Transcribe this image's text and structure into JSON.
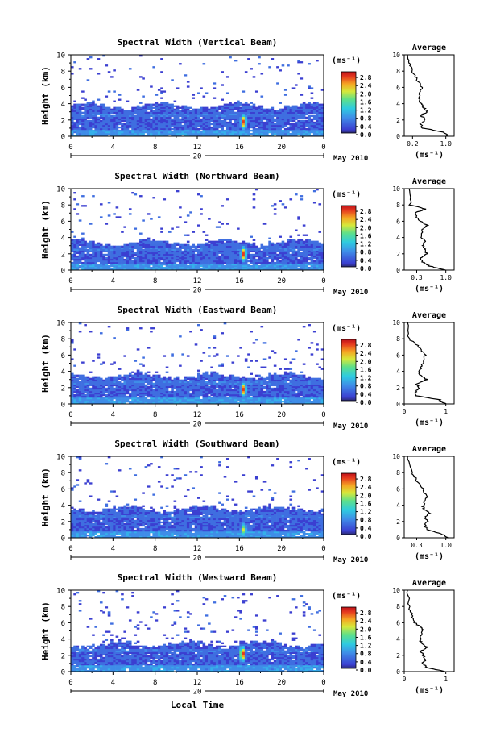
{
  "figure": {
    "x_axis_title": "Local Time",
    "date_label": "May 2010",
    "day_label": "20",
    "colorbar_unit": "(ms⁻¹)",
    "profile_unit": "(ms⁻¹)",
    "y_axis_title": "Height (km)",
    "profile_title": "Average"
  },
  "chart_data": [
    {
      "type": "heatmap",
      "title": "Spectral Width (Vertical Beam)",
      "ylabel": "Height (km)",
      "xlabel": "Local Time",
      "x_ticks": [
        "0",
        "4",
        "8",
        "12",
        "16",
        "20",
        "0"
      ],
      "x_range": [
        0,
        24
      ],
      "y_ticks": [
        "0",
        "2",
        "4",
        "6",
        "8",
        "10"
      ],
      "y_range": [
        0,
        10
      ],
      "colorbar": {
        "ticks": [
          "0.0",
          "0.4",
          "0.8",
          "1.2",
          "1.6",
          "2.0",
          "2.4",
          "2.8"
        ],
        "range": [
          0,
          3.0
        ]
      },
      "layer_top_km": 3.8,
      "peak": {
        "time_h": 16.4,
        "height_km": 1.8,
        "value": 2.8
      },
      "profile": {
        "title": "Average",
        "x_ticks": [
          "0.2",
          "1.0"
        ],
        "x_range": [
          0.0,
          1.2
        ],
        "heights": [
          0,
          0.5,
          1,
          1.5,
          2,
          2.5,
          3,
          3.5,
          4,
          5,
          6,
          7,
          8,
          9,
          10
        ],
        "values": [
          1.05,
          0.95,
          0.45,
          0.38,
          0.5,
          0.42,
          0.55,
          0.48,
          0.4,
          0.35,
          0.42,
          0.3,
          0.18,
          0.12,
          0.08
        ]
      }
    },
    {
      "type": "heatmap",
      "title": "Spectral Width (Northward Beam)",
      "ylabel": "Height (km)",
      "xlabel": "Local Time",
      "x_ticks": [
        "0",
        "4",
        "8",
        "12",
        "16",
        "20",
        "0"
      ],
      "x_range": [
        0,
        24
      ],
      "y_ticks": [
        "0",
        "2",
        "4",
        "6",
        "8",
        "10"
      ],
      "y_range": [
        0,
        10
      ],
      "colorbar": {
        "ticks": [
          "0.0",
          "0.4",
          "0.8",
          "1.2",
          "1.6",
          "2.0",
          "2.4",
          "2.8"
        ],
        "range": [
          0,
          3.0
        ]
      },
      "layer_top_km": 3.4,
      "peak": {
        "time_h": 16.4,
        "height_km": 2.0,
        "value": 2.8
      },
      "profile": {
        "title": "Average",
        "x_ticks": [
          "0.3",
          "1.0"
        ],
        "x_range": [
          0.0,
          1.2
        ],
        "heights": [
          0,
          0.5,
          1,
          1.5,
          2,
          2.5,
          3,
          3.5,
          4,
          5,
          5.5,
          6,
          7,
          7.5,
          8,
          10
        ],
        "values": [
          1.0,
          0.6,
          0.45,
          0.4,
          0.55,
          0.5,
          0.45,
          0.5,
          0.42,
          0.45,
          0.55,
          0.38,
          0.25,
          0.5,
          0.15,
          0.12
        ]
      }
    },
    {
      "type": "heatmap",
      "title": "Spectral Width (Eastward Beam)",
      "ylabel": "Height (km)",
      "xlabel": "Local Time",
      "x_ticks": [
        "0",
        "4",
        "8",
        "12",
        "16",
        "20",
        "0"
      ],
      "x_range": [
        0,
        24
      ],
      "y_ticks": [
        "0",
        "2",
        "4",
        "6",
        "8",
        "10"
      ],
      "y_range": [
        0,
        10
      ],
      "colorbar": {
        "ticks": [
          "0.0",
          "0.4",
          "0.8",
          "1.2",
          "1.6",
          "2.0",
          "2.4",
          "2.8"
        ],
        "range": [
          0,
          3.0
        ]
      },
      "layer_top_km": 3.5,
      "peak": {
        "time_h": 16.4,
        "height_km": 1.8,
        "value": 2.6
      },
      "profile": {
        "title": "Average",
        "x_ticks": [
          "0",
          "1"
        ],
        "x_range": [
          0.0,
          1.2
        ],
        "heights": [
          0,
          0.5,
          1,
          1.5,
          2,
          2.5,
          3,
          3.5,
          4,
          5,
          6,
          7,
          8,
          10
        ],
        "values": [
          1.0,
          0.85,
          0.3,
          0.28,
          0.35,
          0.3,
          0.55,
          0.4,
          0.35,
          0.45,
          0.5,
          0.35,
          0.12,
          0.08
        ]
      }
    },
    {
      "type": "heatmap",
      "title": "Spectral Width (Southward Beam)",
      "ylabel": "Height (km)",
      "xlabel": "Local Time",
      "x_ticks": [
        "0",
        "4",
        "8",
        "12",
        "16",
        "20",
        "0"
      ],
      "x_range": [
        0,
        24
      ],
      "y_ticks": [
        "0",
        "2",
        "4",
        "6",
        "8",
        "10"
      ],
      "y_range": [
        0,
        10
      ],
      "colorbar": {
        "ticks": [
          "0.0",
          "0.4",
          "0.8",
          "1.2",
          "1.6",
          "2.0",
          "2.4",
          "2.8"
        ],
        "range": [
          0,
          3.0
        ]
      },
      "layer_top_km": 3.6,
      "peak": {
        "time_h": 16.4,
        "height_km": 1.0,
        "value": 2.0
      },
      "profile": {
        "title": "Average",
        "x_ticks": [
          "0.3",
          "1.0"
        ],
        "x_range": [
          0.0,
          1.2
        ],
        "heights": [
          0,
          0.5,
          1,
          1.5,
          2,
          2.5,
          3,
          3.5,
          4,
          5,
          6,
          7,
          8,
          10
        ],
        "values": [
          1.05,
          0.9,
          0.55,
          0.5,
          0.55,
          0.5,
          0.6,
          0.48,
          0.45,
          0.55,
          0.45,
          0.3,
          0.2,
          0.08
        ]
      }
    },
    {
      "type": "heatmap",
      "title": "Spectral Width (Westward Beam)",
      "ylabel": "Height (km)",
      "xlabel": "Local Time",
      "x_ticks": [
        "0",
        "4",
        "8",
        "12",
        "16",
        "20",
        "0"
      ],
      "x_range": [
        0,
        24
      ],
      "y_ticks": [
        "0",
        "2",
        "4",
        "6",
        "8",
        "10"
      ],
      "y_range": [
        0,
        10
      ],
      "colorbar": {
        "ticks": [
          "0.0",
          "0.4",
          "0.8",
          "1.2",
          "1.6",
          "2.0",
          "2.4",
          "2.8"
        ],
        "range": [
          0,
          3.0
        ]
      },
      "layer_top_km": 3.4,
      "peak": {
        "time_h": 16.3,
        "height_km": 2.2,
        "value": 2.8
      },
      "profile": {
        "title": "Average",
        "x_ticks": [
          "0",
          "1"
        ],
        "x_range": [
          0.0,
          1.2
        ],
        "heights": [
          0,
          0.5,
          1,
          1.5,
          2,
          2.5,
          3,
          3.5,
          4,
          5,
          5.5,
          6,
          7,
          8,
          10
        ],
        "values": [
          1.0,
          0.55,
          0.45,
          0.5,
          0.45,
          0.4,
          0.55,
          0.42,
          0.38,
          0.45,
          0.4,
          0.25,
          0.18,
          0.12,
          0.08
        ]
      }
    }
  ]
}
